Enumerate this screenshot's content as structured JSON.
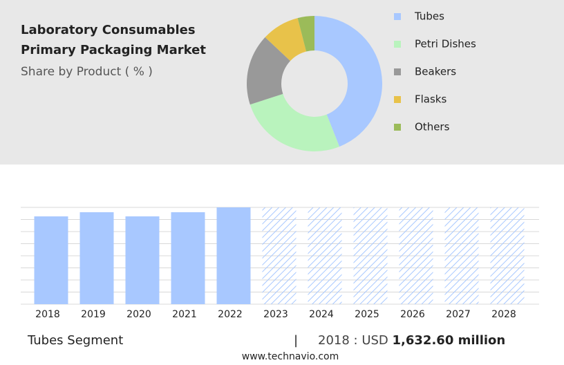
{
  "header": {
    "title": [
      "Laboratory Consumables",
      "Primary Packaging Market"
    ],
    "subtitle": "Share by Product ( % )"
  },
  "chart_data": [
    {
      "type": "pie",
      "categories": [
        "Tubes",
        "Petri Dishes",
        "Beakers",
        "Flasks",
        "Others"
      ],
      "values": [
        44,
        26,
        17,
        9,
        4
      ],
      "colors": [
        "#a8c8ff",
        "#b9f3bd",
        "#999999",
        "#e8c24a",
        "#9bbb59"
      ]
    },
    {
      "type": "bar",
      "categories": [
        "2018",
        "2019",
        "2020",
        "2021",
        "2022",
        "2023",
        "2024",
        "2025",
        "2026",
        "2027",
        "2028"
      ],
      "values": [
        1632.6,
        1710,
        1633,
        1710,
        1800,
        null,
        null,
        null,
        null,
        null,
        null
      ],
      "color": "#a8c8ff",
      "ylim": [
        0,
        1800
      ]
    }
  ],
  "footer": {
    "segment": "Tubes Segment",
    "separator": "|",
    "year_label": "2018 : USD",
    "value_label": "1,632.60 million",
    "source": "www.technavio.com"
  }
}
